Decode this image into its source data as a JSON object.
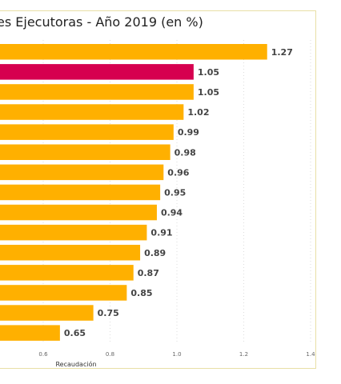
{
  "chart_data": {
    "type": "bar",
    "orientation": "horizontal",
    "title": "es Ejecutoras - Año 2019 (en %)",
    "xlabel": "Recaudación",
    "xlim": [
      0.4,
      1.4
    ],
    "x_ticks": [
      "0.6",
      "0.8",
      "1.0",
      "1.2",
      "1.4"
    ],
    "x_tick_values": [
      0.6,
      0.8,
      1.0,
      1.2,
      1.4
    ],
    "grid": true,
    "values": [
      1.27,
      1.05,
      1.05,
      1.02,
      0.99,
      0.98,
      0.96,
      0.95,
      0.94,
      0.91,
      0.89,
      0.87,
      0.85,
      0.75,
      0.65
    ],
    "data_labels": [
      "1.27",
      "1.05",
      "1.05",
      "1.02",
      "0.99",
      "0.98",
      "0.96",
      "0.95",
      "0.94",
      "0.91",
      "0.89",
      "0.87",
      "0.85",
      "0.75",
      "0.65"
    ],
    "highlight_index": 1,
    "colors": {
      "bar": "#FFB000",
      "highlight": "#D6004F",
      "grid": "#dddddd",
      "frame": "#e8dfa6"
    }
  }
}
